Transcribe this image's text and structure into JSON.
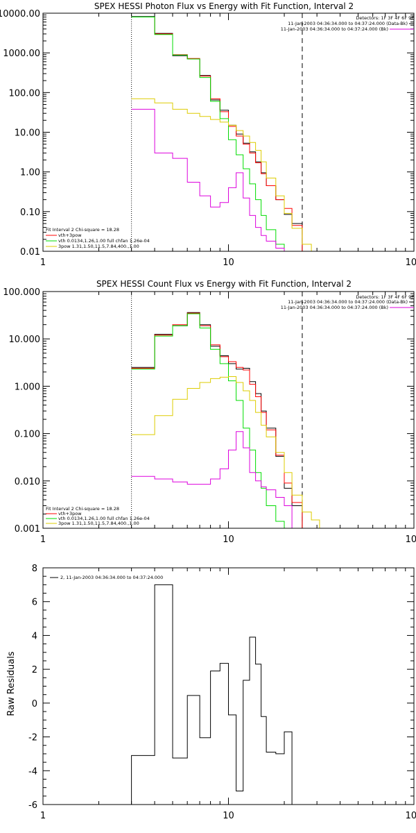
{
  "chart_data": [
    {
      "type": "line",
      "title": "SPEX HESSI Photon Flux vs Energy with Fit Function, Interval 2",
      "xscale": "log",
      "yscale": "log",
      "xlim": [
        1,
        100
      ],
      "ylim": [
        0.01,
        10000
      ],
      "x_tick_labels": [
        "1",
        "10",
        "100"
      ],
      "y_tick_labels": [
        "0.01",
        "0.10",
        "1.00",
        "10.00",
        "100.00",
        "1000.00",
        "10000.00"
      ],
      "legend_top_right": [
        "Detectors: 1F 3F 4F 6F 9F",
        "11-Jan-2003 04:36:34.000 to 04:37:24.000 (Data-Bk)",
        "11-Jan-2003 04:36:34.000 to 04:37:24.000 (Bk)"
      ],
      "legend_bottom_left": [
        "Fit Interval 2   Chi-square = 18.28",
        "vth+3pow",
        "vth 0.0134,1.26,1.00  full chfan 1.26e-04",
        "3pow 1.31,1.50,11.5,7.84,400.,1.00"
      ],
      "vlines": [
        {
          "x": 3.0,
          "style": "dotted"
        },
        {
          "x": 25.0,
          "style": "dashed"
        }
      ],
      "bin_edges": [
        3.0,
        4.0,
        5.0,
        6.0,
        7.0,
        8.0,
        9.0,
        10.0,
        11.0,
        12.0,
        13.0,
        14.0,
        15.0,
        16.0,
        18.0,
        20.0,
        22.0,
        25.0,
        28.0
      ],
      "series": [
        {
          "name": "Data-Bk",
          "color": "#000000",
          "values": [
            8200,
            3100,
            850,
            700,
            270,
            65,
            36,
            15,
            9,
            5.3,
            3.2,
            1.8,
            0.95,
            0.45,
            0.2,
            0.085,
            0.05,
            null
          ]
        },
        {
          "name": "vth+3pow",
          "color": "#ff0000",
          "values": [
            8000,
            3000,
            900,
            720,
            260,
            70,
            33,
            14,
            8,
            5.0,
            3.0,
            1.7,
            0.9,
            0.45,
            0.2,
            0.12,
            0.045,
            0.0
          ]
        },
        {
          "name": "vth",
          "color": "#00dd00",
          "values": [
            8000,
            2900,
            880,
            700,
            240,
            60,
            22,
            6.5,
            2.7,
            1.2,
            0.5,
            0.2,
            0.08,
            0.035,
            0.015,
            null,
            null,
            null
          ]
        },
        {
          "name": "3pow",
          "color": "#ddcc00",
          "values": [
            70,
            55,
            38,
            30,
            25,
            21,
            18,
            15,
            11,
            8,
            5.5,
            3.5,
            1.8,
            0.7,
            0.25,
            0.09,
            0.038,
            0.015
          ]
        },
        {
          "name": "Bk",
          "color": "#dd00dd",
          "values": [
            38,
            3.0,
            2.2,
            0.55,
            0.25,
            0.13,
            0.17,
            0.4,
            0.95,
            0.22,
            0.08,
            0.04,
            0.025,
            0.018,
            0.012,
            null,
            null,
            null
          ]
        }
      ]
    },
    {
      "type": "line",
      "title": "SPEX HESSI Count Flux vs Energy with Fit Function, Interval 2",
      "xscale": "log",
      "yscale": "log",
      "xlim": [
        1,
        100
      ],
      "ylim": [
        0.001,
        100
      ],
      "x_tick_labels": [
        "1",
        "10",
        "100"
      ],
      "y_tick_labels": [
        "0.001",
        "0.010",
        "0.100",
        "1.000",
        "10.000",
        "100.000"
      ],
      "legend_top_right": [
        "Detectors: 1F 3F 4F 6F 9F",
        "11-Jan-2003 04:36:34.000 to 04:37:24.000 (Data-Bk)",
        "11-Jan-2003 04:36:34.000 to 04:37:24.000 (Bk)"
      ],
      "legend_bottom_left": [
        "Fit Interval 2   Chi-square = 18.28",
        "vth+3pow",
        "vth 0.0134,1.26,1.00  full chfan 1.26e-04",
        "3pow 1.31,1.50,11.5,7.84,400.,1.00"
      ],
      "vlines": [
        {
          "x": 3.0,
          "style": "dotted"
        },
        {
          "x": 25.0,
          "style": "dashed"
        }
      ],
      "bin_edges": [
        3.0,
        4.0,
        5.0,
        6.0,
        7.0,
        8.0,
        9.0,
        10.0,
        11.0,
        12.0,
        13.0,
        14.0,
        15.0,
        16.0,
        18.0,
        20.0,
        22.0,
        25.0,
        28.0,
        31.0
      ],
      "series": [
        {
          "name": "Data-Bk",
          "color": "#000000",
          "values": [
            2.5,
            12.5,
            19,
            36,
            20,
            7,
            4.4,
            3.0,
            2.3,
            2.4,
            1.25,
            0.7,
            0.3,
            0.13,
            0.033,
            0.007,
            0.003,
            null,
            null
          ]
        },
        {
          "name": "vth+3pow",
          "color": "#ff0000",
          "values": [
            2.4,
            12,
            20,
            35,
            19,
            7.5,
            4.2,
            3.3,
            2.5,
            2.2,
            1.1,
            0.6,
            0.28,
            0.12,
            0.035,
            0.009,
            0.0035,
            null,
            null
          ]
        },
        {
          "name": "vth",
          "color": "#00dd00",
          "values": [
            2.3,
            11.5,
            19,
            34,
            17,
            6.0,
            3.0,
            1.3,
            0.5,
            0.13,
            0.045,
            0.015,
            0.007,
            0.003,
            0.0014,
            null,
            null,
            null,
            null
          ]
        },
        {
          "name": "3pow",
          "color": "#ddcc00",
          "values": [
            0.095,
            0.24,
            0.53,
            0.9,
            1.2,
            1.45,
            1.55,
            1.6,
            1.2,
            0.8,
            0.5,
            0.28,
            0.15,
            0.085,
            0.04,
            0.015,
            0.005,
            0.0022,
            0.0015
          ]
        },
        {
          "name": "Bk",
          "color": "#dd00dd",
          "values": [
            0.0125,
            0.011,
            0.0095,
            0.0085,
            0.0085,
            0.011,
            0.018,
            0.045,
            0.11,
            0.05,
            0.015,
            0.01,
            0.0075,
            0.0065,
            0.0045,
            0.003,
            0.001,
            null,
            null
          ]
        }
      ]
    },
    {
      "type": "line",
      "title": "",
      "xscale": "log",
      "yscale": "linear",
      "xlim": [
        1,
        100
      ],
      "ylim": [
        -6,
        8
      ],
      "ylabel": "Raw Residuals",
      "x_tick_labels": [
        "1",
        "10",
        "100"
      ],
      "y_tick_labels": [
        "-6",
        "-4",
        "-2",
        "0",
        "2",
        "4",
        "6",
        "8"
      ],
      "legend": [
        "2, 11-Jan-2003 04:36:34.000 to 04:37:24.000"
      ],
      "bin_edges": [
        3.0,
        4.0,
        5.0,
        6.0,
        7.0,
        8.0,
        9.0,
        10.0,
        11.0,
        12.0,
        13.0,
        14.0,
        15.0,
        16.0,
        18.0,
        20.0,
        22.0,
        25.0
      ],
      "series": [
        {
          "name": "2, 11-Jan-2003 04:36:34.000 to 04:37:24.000",
          "color": "#000000",
          "values": [
            -3.1,
            7.0,
            -3.25,
            0.45,
            -2.05,
            1.9,
            2.35,
            -0.7,
            -5.2,
            1.35,
            3.9,
            2.3,
            -0.8,
            -2.9,
            -3.0,
            -1.7,
            -6.0
          ]
        }
      ]
    }
  ]
}
